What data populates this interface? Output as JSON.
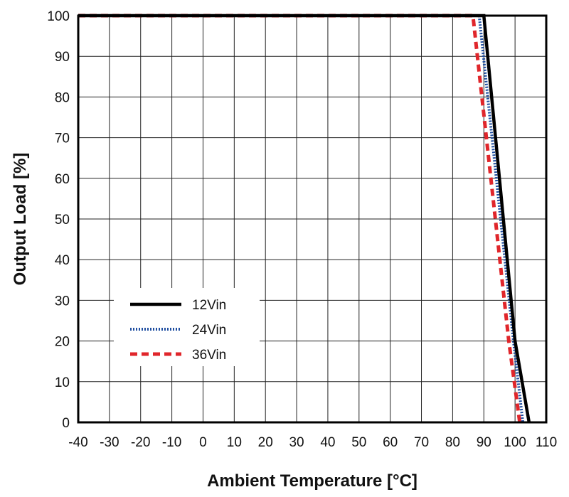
{
  "chart_data": {
    "type": "line",
    "title": "",
    "xlabel": "Ambient Temperature [°C]",
    "ylabel": "Output Load [%]",
    "xlim": [
      -40,
      110
    ],
    "ylim": [
      0,
      100
    ],
    "xticks": [
      -40,
      -30,
      -20,
      -10,
      0,
      10,
      20,
      30,
      40,
      50,
      60,
      70,
      80,
      90,
      100,
      110
    ],
    "yticks": [
      0,
      10,
      20,
      30,
      40,
      50,
      60,
      70,
      80,
      90,
      100
    ],
    "grid": true,
    "legend_position": "lower-left",
    "series": [
      {
        "name": "12Vin",
        "color": "#000000",
        "style": "solid",
        "x": [
          -40,
          90,
          100,
          104.5
        ],
        "y": [
          100,
          100,
          20,
          0
        ]
      },
      {
        "name": "24Vin",
        "color": "#1f4ea0",
        "style": "dotted",
        "x": [
          -40,
          88.5,
          99.5,
          102.5
        ],
        "y": [
          100,
          100,
          20,
          0
        ]
      },
      {
        "name": "36Vin",
        "color": "#e0262b",
        "style": "dashed",
        "x": [
          -40,
          86.5,
          98,
          101.5
        ],
        "y": [
          100,
          100,
          20,
          0
        ]
      }
    ]
  }
}
